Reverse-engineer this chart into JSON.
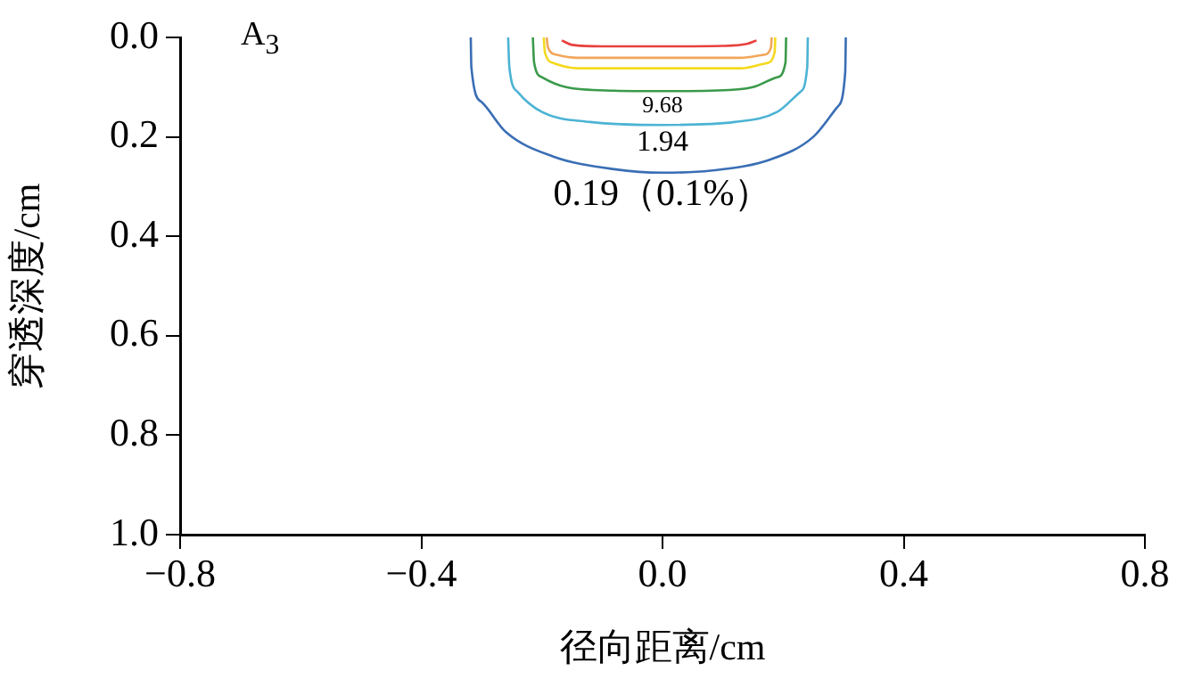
{
  "chart_data": {
    "type": "line",
    "xlabel": "径向距离/cm",
    "ylabel": "穿透深度/cm",
    "annotations": [
      "A$_{3}$"
    ],
    "xlim": [
      -0.8,
      0.8
    ],
    "xticks": [
      {
        "value": -0.8,
        "label": "−0.8"
      },
      {
        "value": -0.4,
        "label": "−0.4"
      },
      {
        "value": 0,
        "label": "0.0"
      },
      {
        "value": 0.4,
        "label": "0.4"
      },
      {
        "value": 0.8,
        "label": "0.8"
      }
    ],
    "ylim": [
      1.0,
      0.0
    ],
    "yticks": [
      {
        "value": 0,
        "label": "0.0"
      },
      {
        "value": 0.2,
        "label": "0.2"
      },
      {
        "value": 0.4,
        "label": "0.4"
      },
      {
        "value": 0.6,
        "label": "0.6"
      },
      {
        "value": 0.8,
        "label": "0.8"
      },
      {
        "value": 1.0,
        "label": "1.0"
      }
    ],
    "grid": false,
    "legend": false,
    "marker": "none",
    "line_style": "solid",
    "series": [
      {
        "color": "#e8413c",
        "x": [
          -0.167,
          -0.15,
          -0.1,
          0,
          0.1,
          0.14,
          0.156
        ],
        "values": [
          0.006,
          0.015,
          0.018,
          0.018,
          0.017,
          0.013,
          0.006
        ]
      },
      {
        "color": "#f2a65a",
        "x": [
          -0.192,
          -0.19,
          -0.175,
          -0.14,
          0,
          0.13,
          0.168,
          0.18,
          0.181
        ],
        "values": [
          0,
          0.02,
          0.035,
          0.041,
          0.041,
          0.041,
          0.035,
          0.02,
          0
        ]
      },
      {
        "color": "#f5d91e",
        "x": [
          -0.197,
          -0.195,
          -0.18,
          -0.14,
          0,
          0.13,
          0.172,
          0.186,
          0.187
        ],
        "values": [
          0,
          0.03,
          0.052,
          0.062,
          0.062,
          0.062,
          0.052,
          0.03,
          0
        ]
      },
      {
        "name": "9.68",
        "color": "#3a9a4a",
        "x": [
          -0.215,
          -0.213,
          -0.2,
          -0.16,
          -0.08,
          0,
          0.08,
          0.15,
          0.19,
          0.204,
          0.205
        ],
        "values": [
          0,
          0.05,
          0.08,
          0.1,
          0.107,
          0.108,
          0.107,
          0.1,
          0.08,
          0.05,
          0
        ]
      },
      {
        "name": "1.94",
        "color": "#4cb3d4",
        "x": [
          -0.256,
          -0.254,
          -0.24,
          -0.2,
          -0.12,
          0,
          0.12,
          0.19,
          0.228,
          0.24,
          0.241
        ],
        "values": [
          0,
          0.06,
          0.11,
          0.15,
          0.17,
          0.176,
          0.17,
          0.15,
          0.11,
          0.06,
          0
        ]
      },
      {
        "name": "0.19（0.1%）",
        "color": "#3a6eb5",
        "x": [
          -0.318,
          -0.317,
          -0.3,
          -0.26,
          -0.18,
          -0.08,
          0,
          0.08,
          0.18,
          0.25,
          0.29,
          0.303,
          0.304
        ],
        "values": [
          0,
          0.06,
          0.13,
          0.19,
          0.24,
          0.265,
          0.272,
          0.268,
          0.245,
          0.2,
          0.14,
          0.07,
          0
        ]
      }
    ]
  }
}
